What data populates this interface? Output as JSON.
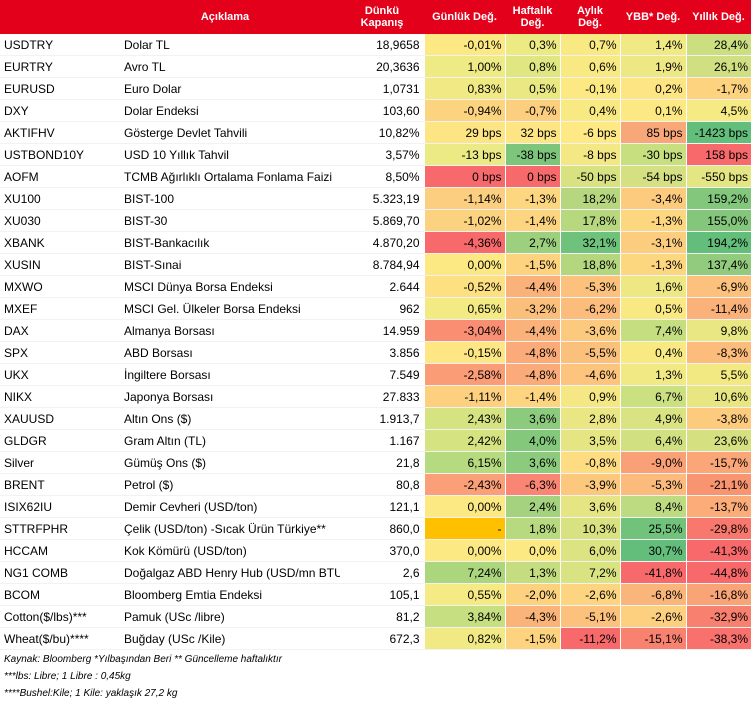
{
  "headers": {
    "aciklama": "Açıklama",
    "dunku_1": "Dünkü",
    "dunku_2": "Kapanış",
    "gunluk": "Günlük Değ.",
    "haftalik_1": "Haftalık",
    "haftalik_2": "Değ.",
    "aylik_1": "Aylık",
    "aylik_2": "Değ.",
    "ybb": "YBB* Değ.",
    "yillik": "Yıllık Değ."
  },
  "rows": [
    {
      "code": "USDTRY",
      "desc": "Dolar TL",
      "close": "18,9658",
      "d": "-0,01%",
      "w": "0,3%",
      "m": "0,7%",
      "ytd": "1,4%",
      "y": "28,4%",
      "c": [
        "#fde983",
        "#ecea82",
        "#f9e983",
        "#f1e984",
        "#cbdf80"
      ]
    },
    {
      "code": "EURTRY",
      "desc": "Avro TL",
      "close": "20,3636",
      "d": "1,00%",
      "w": "0,8%",
      "m": "0,6%",
      "ytd": "1,9%",
      "y": "26,1%",
      "c": [
        "#eeea84",
        "#dfe682",
        "#f9e983",
        "#ede884",
        "#d0df81"
      ]
    },
    {
      "code": "EURUSD",
      "desc": "Euro Dolar",
      "close": "1,0731",
      "d": "0,83%",
      "w": "0,5%",
      "m": "-0,1%",
      "ytd": "0,2%",
      "y": "-1,7%",
      "c": [
        "#f1ea84",
        "#e9e883",
        "#fde983",
        "#fee583",
        "#fdd380"
      ]
    },
    {
      "code": "DXY",
      "desc": "Dolar Endeksi",
      "close": "103,60",
      "d": "-0,94%",
      "w": "-0,7%",
      "m": "0,4%",
      "ytd": "0,1%",
      "y": "4,5%",
      "c": [
        "#fcd47f",
        "#fbcf7f",
        "#f9e983",
        "#fde983",
        "#f6ea84"
      ]
    },
    {
      "code": "AKTIFHV",
      "desc": "Gösterge Devlet Tahvili",
      "close": "10,82%",
      "d": "29 bps",
      "w": "32 bps",
      "m": "-6 bps",
      "ytd": "85 bps",
      "y": "-1423 bps",
      "c": [
        "#fde584",
        "#fde584",
        "#fee984",
        "#f8a878",
        "#63be7b"
      ]
    },
    {
      "code": "USTBOND10Y",
      "desc": "USD 10 Yıllık Tahvil",
      "close": "3,57%",
      "d": "-13 bps",
      "w": "-38 bps",
      "m": "-8 bps",
      "ytd": "-30 bps",
      "y": "158 bps",
      "c": [
        "#ecea84",
        "#7ec57c",
        "#f4e884",
        "#c8df80",
        "#f8696b"
      ]
    },
    {
      "code": "AOFM",
      "desc": "TCMB Ağırlıklı Ortalama Fonlama Faizi",
      "close": "8,50%",
      "d": "0 bps",
      "w": "0 bps",
      "m": "-50 bps",
      "ytd": "-54 bps",
      "y": "-550 bps",
      "c": [
        "#f8696b",
        "#f8696b",
        "#d8e281",
        "#d4e082",
        "#e3e683"
      ]
    },
    {
      "code": "XU100",
      "desc": "BIST-100",
      "close": "5.323,19",
      "d": "-1,14%",
      "w": "-1,3%",
      "m": "18,2%",
      "ytd": "-3,4%",
      "y": "159,2%",
      "c": [
        "#fbcf7f",
        "#fdd680",
        "#b6d77f",
        "#fccb7e",
        "#82c77c"
      ]
    },
    {
      "code": "XU030",
      "desc": "BIST-30",
      "close": "5.869,70",
      "d": "-1,02%",
      "w": "-1,4%",
      "m": "17,8%",
      "ytd": "-1,3%",
      "y": "155,0%",
      "c": [
        "#fbd27f",
        "#fdd580",
        "#b8d87f",
        "#fdd680",
        "#84c77c"
      ]
    },
    {
      "code": "XBANK",
      "desc": "BIST-Bankacılık",
      "close": "4.870,20",
      "d": "-4,36%",
      "w": "2,7%",
      "m": "32,1%",
      "ytd": "-3,1%",
      "y": "194,2%",
      "c": [
        "#f8696b",
        "#9dd07e",
        "#6fc27c",
        "#fccd7e",
        "#63be7b"
      ]
    },
    {
      "code": "XUSIN",
      "desc": "BIST-Sınai",
      "close": "8.784,94",
      "d": "0,00%",
      "w": "-1,5%",
      "m": "18,8%",
      "ytd": "-1,3%",
      "y": "137,4%",
      "c": [
        "#fde983",
        "#fdd37f",
        "#b3d67f",
        "#fdd680",
        "#92cb7d"
      ]
    },
    {
      "code": "MXWO",
      "desc": "MSCI Dünya Borsa Endeksi",
      "close": "2.644",
      "d": "-0,52%",
      "w": "-4,4%",
      "m": "-5,3%",
      "ytd": "1,6%",
      "y": "-6,9%",
      "c": [
        "#fde082",
        "#fab27a",
        "#fcc27d",
        "#eee884",
        "#fcc27d"
      ]
    },
    {
      "code": "MXEF",
      "desc": "MSCI Gel. Ülkeler Borsa Endeksi",
      "close": "962",
      "d": "0,65%",
      "w": "-3,2%",
      "m": "-6,2%",
      "ytd": "0,5%",
      "y": "-11,4%",
      "c": [
        "#f4ea84",
        "#fbbf7c",
        "#fcbc7c",
        "#f9e983",
        "#fbb27a"
      ]
    },
    {
      "code": "DAX",
      "desc": "Almanya Borsası",
      "close": "14.959",
      "d": "-3,04%",
      "w": "-4,4%",
      "m": "-3,6%",
      "ytd": "7,4%",
      "y": "9,8%",
      "c": [
        "#f98e73",
        "#fab27a",
        "#fcca7e",
        "#c5de80",
        "#e9e783"
      ]
    },
    {
      "code": "SPX",
      "desc": "ABD Borsası",
      "close": "3.856",
      "d": "-0,15%",
      "w": "-4,8%",
      "m": "-5,5%",
      "ytd": "0,4%",
      "y": "-8,3%",
      "c": [
        "#fde683",
        "#faab79",
        "#fcc07d",
        "#f9e983",
        "#fcbc7c"
      ]
    },
    {
      "code": "UKX",
      "desc": "İngiltere Borsası",
      "close": "7.549",
      "d": "-2,58%",
      "w": "-4,8%",
      "m": "-4,6%",
      "ytd": "1,3%",
      "y": "5,5%",
      "c": [
        "#fa9c76",
        "#faab79",
        "#fcc47d",
        "#f1e984",
        "#f2e983"
      ]
    },
    {
      "code": "NIKX",
      "desc": "Japonya Borsası",
      "close": "27.833",
      "d": "-1,11%",
      "w": "-1,4%",
      "m": "0,9%",
      "ytd": "6,7%",
      "y": "10,6%",
      "c": [
        "#fcd07f",
        "#fdd580",
        "#f5e884",
        "#cbe080",
        "#e7e683"
      ]
    },
    {
      "code": "XAUUSD",
      "desc": "Altın Ons ($)",
      "close": "1.913,7",
      "d": "2,43%",
      "w": "3,6%",
      "m": "2,8%",
      "ytd": "4,9%",
      "y": "-3,8%",
      "c": [
        "#d6e381",
        "#8cca7d",
        "#eae683",
        "#d9e382",
        "#fdcb7e"
      ]
    },
    {
      "code": "GLDGR",
      "desc": "Gram Altın (TL)",
      "close": "1.167",
      "d": "2,42%",
      "w": "4,0%",
      "m": "3,5%",
      "ytd": "6,4%",
      "y": "23,6%",
      "c": [
        "#d6e381",
        "#84c87c",
        "#e6e583",
        "#ceе081",
        "#d5e081"
      ]
    },
    {
      "code": "Silver",
      "desc": "Gümüş Ons ($)",
      "close": "21,8",
      "d": "6,15%",
      "w": "3,6%",
      "m": "-0,8%",
      "ytd": "-9,0%",
      "y": "-15,7%",
      "c": [
        "#b6da7f",
        "#8cca7d",
        "#fddc82",
        "#f9a077",
        "#faa678"
      ]
    },
    {
      "code": "BRENT",
      "desc": "Petrol ($)",
      "close": "80,8",
      "d": "-2,43%",
      "w": "-6,3%",
      "m": "-3,9%",
      "ytd": "-5,3%",
      "y": "-21,1%",
      "c": [
        "#fa9f77",
        "#f98674",
        "#fcc87e",
        "#fbbb7c",
        "#f8946f"
      ]
    },
    {
      "code": "ISIX62IU",
      "desc": "Demir Cevheri (USD/ton)",
      "close": "121,1",
      "d": "0,00%",
      "w": "2,4%",
      "m": "3,6%",
      "ytd": "8,4%",
      "y": "-13,7%",
      "c": [
        "#fde983",
        "#a4d27e",
        "#e5e583",
        "#bddb80",
        "#fbac79"
      ]
    },
    {
      "code": "STTRFPHR",
      "desc": "Çelik (USD/ton) -Sıcak Ürün Türkiye**",
      "close": "860,0",
      "d": "-",
      "w": "1,8%",
      "m": "10,3%",
      "ytd": "25,5%",
      "y": "-29,8%",
      "c": [
        "#ffc000",
        "#b7d97f",
        "#d8e281",
        "#71c37c",
        "#f8786d"
      ]
    },
    {
      "code": "HCCAM",
      "desc": "Kok Kömürü (USD/ton)",
      "close": "370,0",
      "d": "0,00%",
      "w": "0,0%",
      "m": "6,0%",
      "ytd": "30,7%",
      "y": "-41,3%",
      "c": [
        "#fde983",
        "#fde983",
        "#dce382",
        "#63be7b",
        "#f8696b"
      ]
    },
    {
      "code": "NG1 COMB",
      "desc": "Doğalgaz ABD Henry Hub (USD/mn BTU)",
      "close": "2,6",
      "d": "7,24%",
      "w": "1,3%",
      "m": "7,2%",
      "ytd": "-41,8%",
      "y": "-44,8%",
      "c": [
        "#acd67e",
        "#c4dd80",
        "#dae382",
        "#f8696b",
        "#f8696b"
      ]
    },
    {
      "code": "BCOM",
      "desc": "Bloomberg Emtia Endeksi",
      "close": "105,1",
      "d": "0,55%",
      "w": "-2,0%",
      "m": "-2,6%",
      "ytd": "-6,8%",
      "y": "-16,8%",
      "c": [
        "#f6ea84",
        "#fcd27f",
        "#fdd480",
        "#fab67a",
        "#f9a477"
      ]
    },
    {
      "code": "Cotton($/lbs)***",
      "desc": "Pamuk (USc /libre)",
      "close": "81,2",
      "d": "3,84%",
      "w": "-4,3%",
      "m": "-5,1%",
      "ytd": "-2,6%",
      "y": "-32,9%",
      "c": [
        "#c6df80",
        "#fab47a",
        "#fcc27d",
        "#fcd07f",
        "#f8806f"
      ]
    },
    {
      "code": "Wheat($/bu)****",
      "desc": "Buğday (USc /Kile)",
      "close": "672,3",
      "d": "0,82%",
      "w": "-1,5%",
      "m": "-11,2%",
      "ytd": "-15,1%",
      "y": "-38,3%",
      "c": [
        "#f1ea84",
        "#fdd37f",
        "#f8696b",
        "#f8826f",
        "#f8716c"
      ]
    }
  ],
  "footnotes": [
    "Kaynak: Bloomberg *Yılbaşından Beri  ** Güncelleme haftalıktır",
    "***lbs: Libre; 1 Libre : 0,45kg",
    "****Bushel:Kile; 1 Kile: yaklaşık 27,2 kg"
  ]
}
